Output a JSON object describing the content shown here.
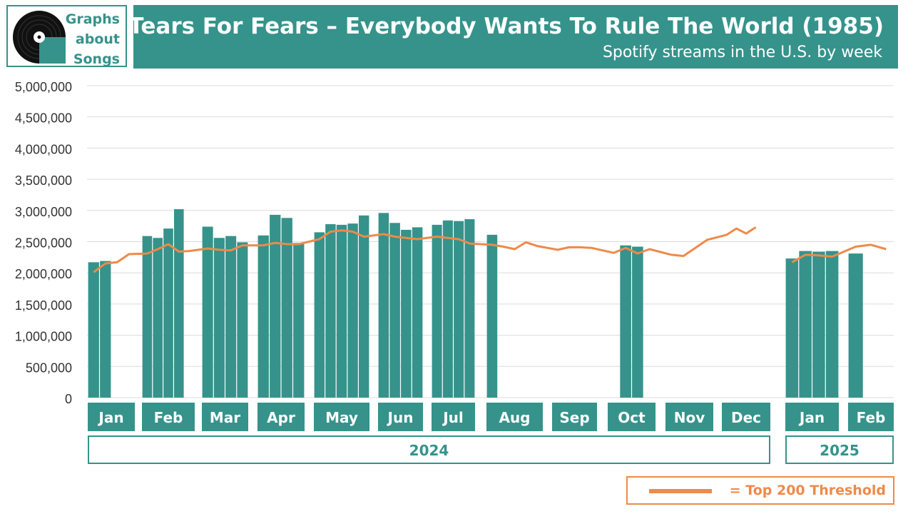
{
  "logo": {
    "lines": [
      "Graphs",
      "about",
      "Songs"
    ]
  },
  "header": {
    "title": "Tears For Fears – Everybody Wants To Rule The World (1985)",
    "subtitle": "Spotify streams in the U.S. by week"
  },
  "legend": {
    "label": "= Top 200 Threshold"
  },
  "colors": {
    "accent": "#35938b",
    "threshold": "#ee8a4a",
    "grid": "#dcdcdc",
    "text": "#333333"
  },
  "chart_data": {
    "type": "bar",
    "ylim": [
      0,
      5000000
    ],
    "yticks": [
      "0",
      "500,000",
      "1,000,000",
      "1,500,000",
      "2,000,000",
      "2,500,000",
      "3,000,000",
      "3,500,000",
      "4,000,000",
      "4,500,000",
      "5,000,000"
    ],
    "grid": true,
    "months": [
      "Jan",
      "Feb",
      "Mar",
      "Apr",
      "May",
      "Jun",
      "Jul",
      "Aug",
      "Sep",
      "Oct",
      "Nov",
      "Dec",
      "Jan",
      "Feb"
    ],
    "years": [
      {
        "label": "2024",
        "months": 12
      },
      {
        "label": "2025",
        "months": 2
      }
    ],
    "weeks_per_month": [
      4,
      5,
      4,
      4,
      5,
      4,
      4,
      5,
      4,
      4,
      4,
      5,
      4,
      3
    ],
    "series": [
      {
        "type": "bar",
        "values": [
          2170000,
          2190000,
          null,
          null,
          2590000,
          2560000,
          2710000,
          3020000,
          null,
          2740000,
          2560000,
          2590000,
          2490000,
          2600000,
          2930000,
          2880000,
          2480000,
          2650000,
          2780000,
          2770000,
          2790000,
          2920000,
          2960000,
          2800000,
          2690000,
          2730000,
          2770000,
          2840000,
          2830000,
          2860000,
          2610000,
          null,
          null,
          null,
          null,
          null,
          null,
          null,
          null,
          null,
          2440000,
          2420000,
          null,
          null,
          null,
          null,
          null,
          null,
          null,
          null,
          null,
          null,
          2230000,
          2350000,
          2340000,
          2350000,
          2310000,
          null,
          null
        ]
      },
      {
        "name": "Top 200 Threshold",
        "type": "line",
        "values": [
          2010000,
          2150000,
          2170000,
          2300000,
          2310000,
          2380000,
          2460000,
          2340000,
          2350000,
          2390000,
          2370000,
          2360000,
          2440000,
          2440000,
          2480000,
          2460000,
          2460000,
          2540000,
          2660000,
          2680000,
          2660000,
          2580000,
          2620000,
          2580000,
          2560000,
          2540000,
          2580000,
          2560000,
          2540000,
          2470000,
          2450000,
          2420000,
          2380000,
          2490000,
          2430000,
          2370000,
          2410000,
          2410000,
          2400000,
          2320000,
          2400000,
          2310000,
          2380000,
          2290000,
          2270000,
          2400000,
          2530000,
          2610000,
          2710000,
          2630000,
          2730000,
          null,
          2170000,
          2290000,
          2280000,
          2260000,
          2420000,
          2450000,
          2380000
        ]
      }
    ]
  }
}
